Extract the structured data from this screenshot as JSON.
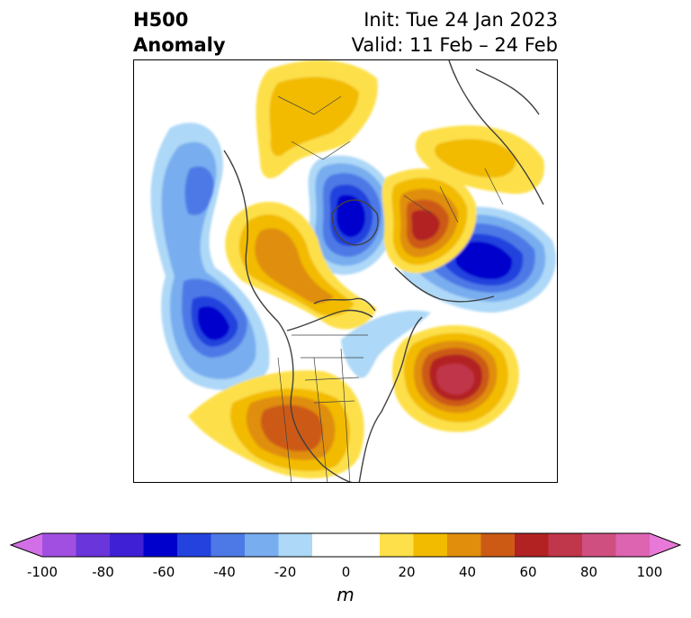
{
  "header": {
    "title_line1": "H500",
    "title_line2": "Anomaly",
    "init": "Init: Tue 24 Jan 2023",
    "valid": "Valid: 11 Feb – 24 Feb"
  },
  "map": {
    "region": "North America / Arctic polar view",
    "features": [
      {
        "name": "neg-anomaly-pacific",
        "sign": "negative",
        "peak": -60
      },
      {
        "name": "neg-anomaly-arctic",
        "sign": "negative",
        "peak": -60
      },
      {
        "name": "neg-anomaly-siberia",
        "sign": "negative",
        "peak": -60
      },
      {
        "name": "pos-anomaly-western-us",
        "sign": "positive",
        "peak": 50
      },
      {
        "name": "pos-anomaly-atlantic",
        "sign": "positive",
        "peak": 70
      },
      {
        "name": "pos-anomaly-kara-sea",
        "sign": "positive",
        "peak": 60
      }
    ]
  },
  "colorbar": {
    "unit": "m",
    "ticks": [
      "-100",
      "-80",
      "-60",
      "-40",
      "-20",
      "0",
      "20",
      "40",
      "60",
      "80",
      "100"
    ],
    "colors": [
      "#d36fe6",
      "#a04fe0",
      "#6a35db",
      "#3f20d4",
      "#0000cd",
      "#2342de",
      "#4d79e6",
      "#78adef",
      "#add8f7",
      "#ffffff",
      "#ffffff",
      "#fde04a",
      "#f2bb00",
      "#e08e0b",
      "#cc5a15",
      "#b22222",
      "#c0364a",
      "#cf5080",
      "#dc64b0",
      "#e879d8"
    ]
  }
}
